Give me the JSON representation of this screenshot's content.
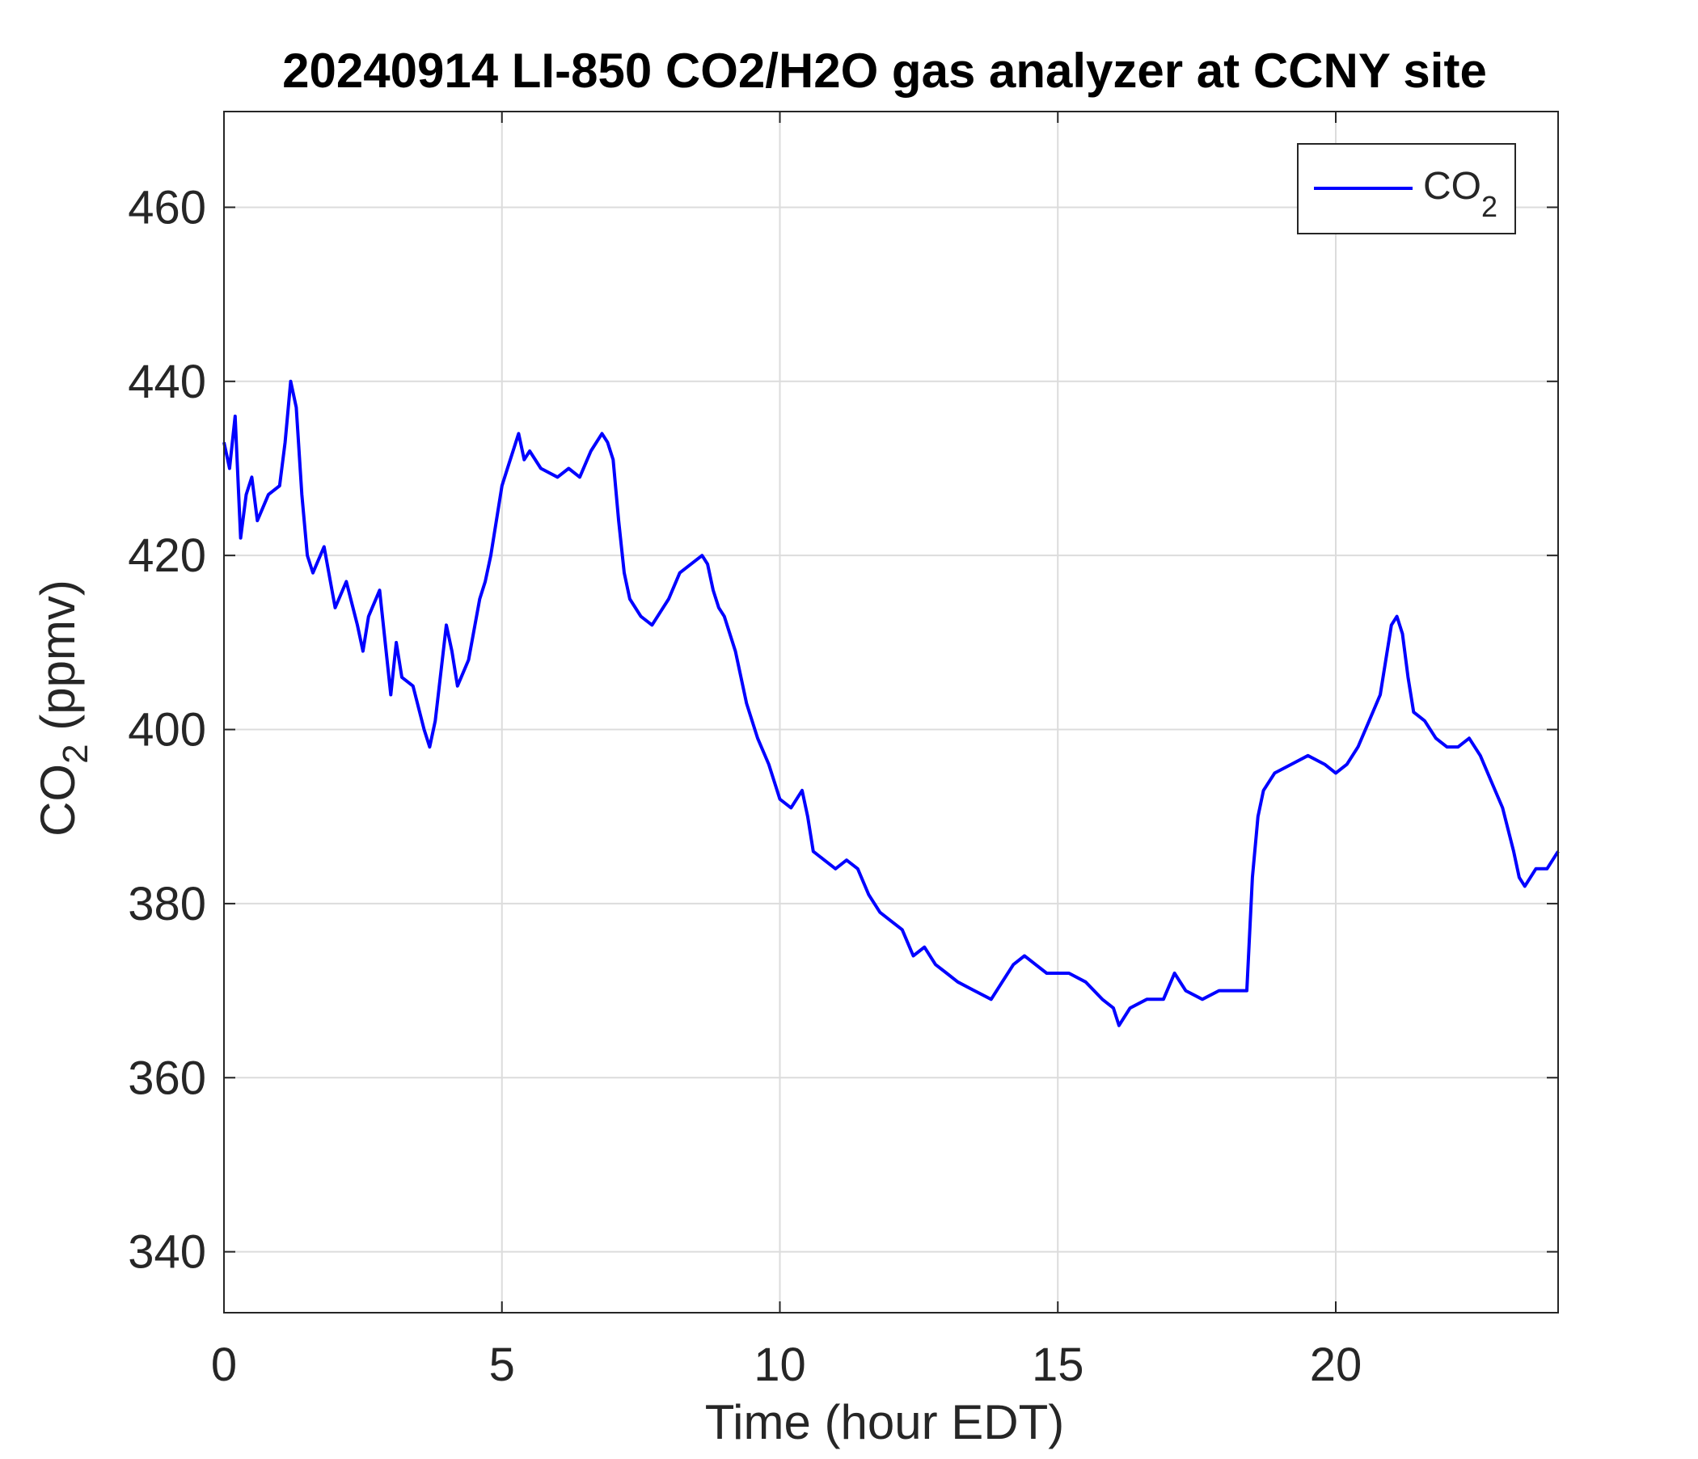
{
  "chart_data": {
    "type": "line",
    "title": "20240914 LI-850 CO2/H2O gas analyzer at CCNY site",
    "xlabel": "Time (hour EDT)",
    "ylabel": {
      "base": "CO",
      "sub": "2",
      "rest": " (ppmv)"
    },
    "xlim": [
      0,
      24
    ],
    "ylim": [
      333,
      471
    ],
    "xticks": [
      0,
      5,
      10,
      15,
      20
    ],
    "yticks": [
      340,
      360,
      380,
      400,
      420,
      440,
      460
    ],
    "grid": true,
    "legend_position": "top-right",
    "series": [
      {
        "legend": {
          "base": "CO",
          "sub": "2"
        },
        "color": "#0000ff",
        "x": [
          0.0,
          0.1,
          0.2,
          0.3,
          0.4,
          0.5,
          0.6,
          0.8,
          1.0,
          1.1,
          1.2,
          1.3,
          1.4,
          1.5,
          1.6,
          1.8,
          2.0,
          2.2,
          2.4,
          2.5,
          2.6,
          2.8,
          3.0,
          3.1,
          3.2,
          3.4,
          3.6,
          3.7,
          3.8,
          4.0,
          4.1,
          4.2,
          4.4,
          4.6,
          4.7,
          4.8,
          5.0,
          5.1,
          5.2,
          5.3,
          5.4,
          5.5,
          5.7,
          6.0,
          6.2,
          6.4,
          6.6,
          6.8,
          6.9,
          7.0,
          7.1,
          7.2,
          7.3,
          7.5,
          7.7,
          7.9,
          8.0,
          8.2,
          8.4,
          8.6,
          8.7,
          8.8,
          8.9,
          9.0,
          9.2,
          9.4,
          9.6,
          9.8,
          10.0,
          10.2,
          10.4,
          10.5,
          10.6,
          10.8,
          11.0,
          11.2,
          11.4,
          11.6,
          11.8,
          12.0,
          12.2,
          12.4,
          12.6,
          12.8,
          13.0,
          13.2,
          13.5,
          13.8,
          14.0,
          14.2,
          14.4,
          14.6,
          14.8,
          15.0,
          15.2,
          15.5,
          15.8,
          16.0,
          16.1,
          16.3,
          16.6,
          16.9,
          17.1,
          17.3,
          17.6,
          17.9,
          18.2,
          18.4,
          18.5,
          18.6,
          18.7,
          18.9,
          19.2,
          19.5,
          19.8,
          20.0,
          20.2,
          20.4,
          20.6,
          20.8,
          20.9,
          21.0,
          21.1,
          21.2,
          21.3,
          21.4,
          21.6,
          21.8,
          22.0,
          22.2,
          22.4,
          22.6,
          22.8,
          23.0,
          23.2,
          23.3,
          23.4,
          23.6,
          23.8,
          24.0
        ],
        "values": [
          433,
          430,
          436,
          422,
          427,
          429,
          424,
          427,
          428,
          433,
          440,
          437,
          427,
          420,
          418,
          421,
          414,
          417,
          412,
          409,
          413,
          416,
          404,
          410,
          406,
          405,
          400,
          398,
          401,
          412,
          409,
          405,
          408,
          415,
          417,
          420,
          428,
          430,
          432,
          434,
          431,
          432,
          430,
          429,
          430,
          429,
          432,
          434,
          433,
          431,
          424,
          418,
          415,
          413,
          412,
          414,
          415,
          418,
          419,
          420,
          419,
          416,
          414,
          413,
          409,
          403,
          399,
          396,
          392,
          391,
          393,
          390,
          386,
          385,
          384,
          385,
          384,
          381,
          379,
          378,
          377,
          374,
          375,
          373,
          372,
          371,
          370,
          369,
          371,
          373,
          374,
          373,
          372,
          372,
          372,
          371,
          369,
          368,
          366,
          368,
          369,
          369,
          372,
          370,
          369,
          370,
          370,
          370,
          383,
          390,
          393,
          395,
          396,
          397,
          396,
          395,
          396,
          398,
          401,
          404,
          408,
          412,
          413,
          411,
          406,
          402,
          401,
          399,
          398,
          398,
          399,
          397,
          394,
          391,
          386,
          383,
          382,
          384,
          384,
          386
        ]
      }
    ]
  }
}
